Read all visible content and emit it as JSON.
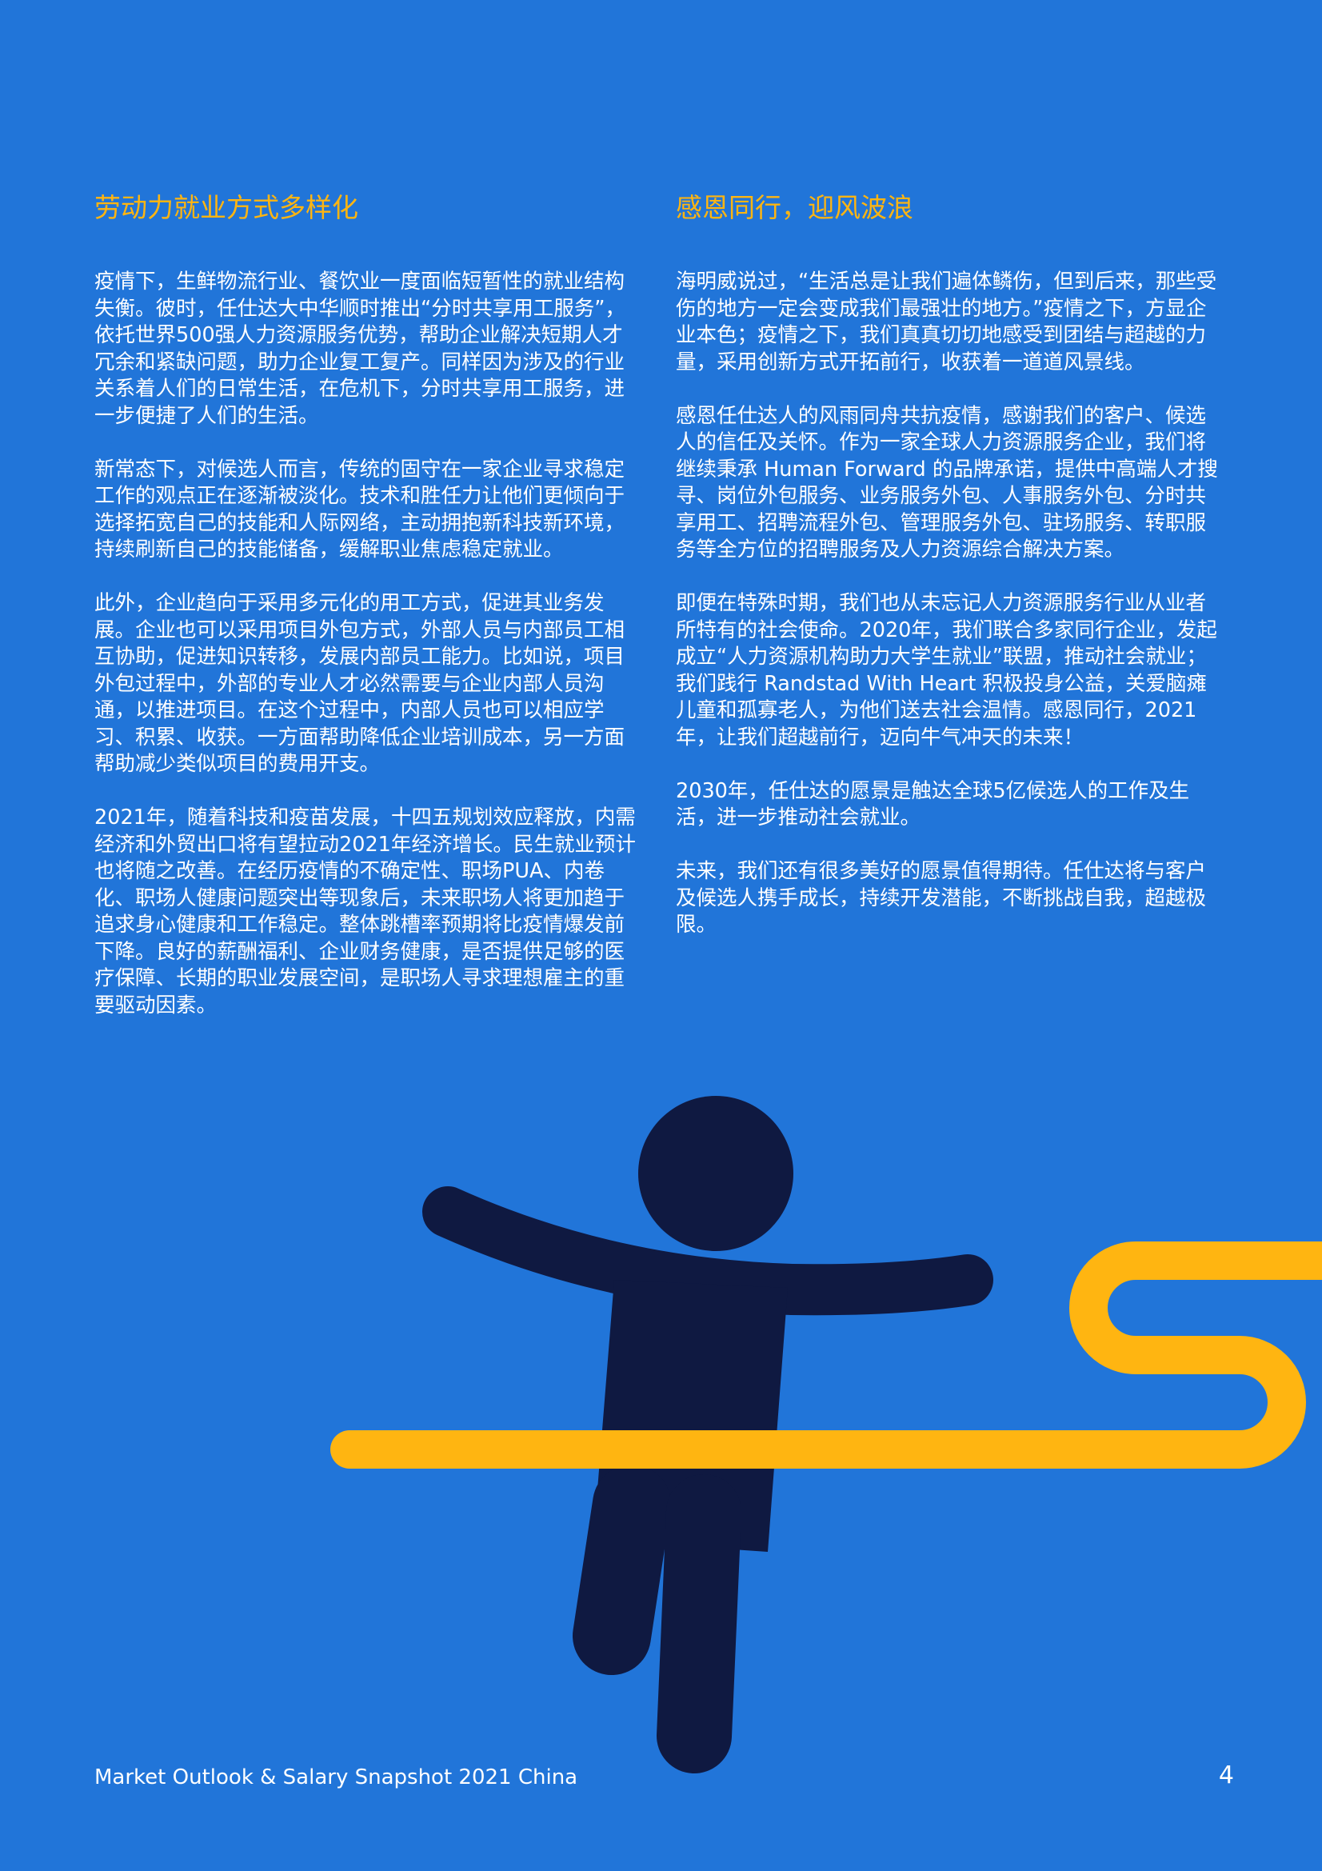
{
  "left_column": {
    "heading": "劳动力就业方式多样化",
    "paragraphs": [
      "疫情下，生鲜物流行业、餐饮业一度面临短暂性的就业结构失衡。彼时，任仕达大中华顺时推出“分时共享用工服务”，依托世界500强人力资源服务优势，帮助企业解决短期人才冗余和紧缺问题，助力企业复工复产。同样因为涉及的行业关系着人们的日常生活，在危机下，分时共享用工服务，进一步便捷了人们的生活。",
      "新常态下，对候选人而言，传统的固守在一家企业寻求稳定工作的观点正在逐渐被淡化。技术和胜任力让他们更倾向于选择拓宽自己的技能和人际网络，主动拥抱新科技新环境，持续刷新自己的技能储备，缓解职业焦虑稳定就业。",
      "此外，企业趋向于采用多元化的用工方式，促进其业务发展。企业也可以采用项目外包方式，外部人员与内部员工相互协助，促进知识转移，发展内部员工能力。比如说，项目外包过程中，外部的专业人才必然需要与企业内部人员沟通，以推进项目。在这个过程中，内部人员也可以相应学习、积累、收获。一方面帮助降低企业培训成本，另一方面帮助减少类似项目的费用开支。",
      "2021年，随着科技和疫苗发展，十四五规划效应释放，内需经济和外贸出口将有望拉动2021年经济增长。民生就业预计也将随之改善。在经历疫情的不确定性、职场PUA、内卷化、职场人健康问题突出等现象后，未来职场人将更加趋于追求身心健康和工作稳定。整体跳槽率预期将比疫情爆发前下降。良好的薪酬福利、企业财务健康，是否提供足够的医疗保障、长期的职业发展空间，是职场人寻求理想雇主的重要驱动因素。"
    ]
  },
  "right_column": {
    "heading": "感恩同行，迎风波浪",
    "paragraphs": [
      "海明威说过，“生活总是让我们遍体鳞伤，但到后来，那些受伤的地方一定会变成我们最强壮的地方。”疫情之下，方显企业本色；疫情之下，我们真真切切地感受到团结与超越的力量，采用创新方式开拓前行，收获着一道道风景线。",
      "感恩任仕达人的风雨同舟共抗疫情，感谢我们的客户、候选人的信任及关怀。作为一家全球人力资源服务企业，我们将继续秉承 Human Forward 的品牌承诺，提供中高端人才搜寻、岗位外包服务、业务服务外包、人事服务外包、分时共享用工、招聘流程外包、管理服务外包、驻场服务、转职服务等全方位的招聘服务及人力资源综合解决方案。",
      "即便在特殊时期，我们也从未忘记人力资源服务行业从业者所特有的社会使命。2020年，我们联合多家同行企业，发起成立“人力资源机构助力大学生就业”联盟，推动社会就业；我们践行 Randstad With Heart 积极投身公益，关爱脑瘫儿童和孤寡老人，为他们送去社会温情。感恩同行，2021年，让我们超越前行，迈向牛气冲天的未来！",
      "2030年，任仕达的愿景是触达全球5亿候选人的工作及生活，进一步推动社会就业。",
      "未来，我们还有很多美好的愿景值得期待。任仕达将与客户及候选人携手成长，持续开发潜能，不断挑战自我，超越极限。"
    ]
  },
  "footer": {
    "title": "Market Outlook & Salary Snapshot 2021 China",
    "page_number": "4"
  },
  "colors": {
    "background": "#2175d9",
    "heading": "#ffb511",
    "figure": "#0f1941",
    "ribbon": "#ffb511"
  },
  "illustration": {
    "icon": "finish-line-runner-icon"
  }
}
